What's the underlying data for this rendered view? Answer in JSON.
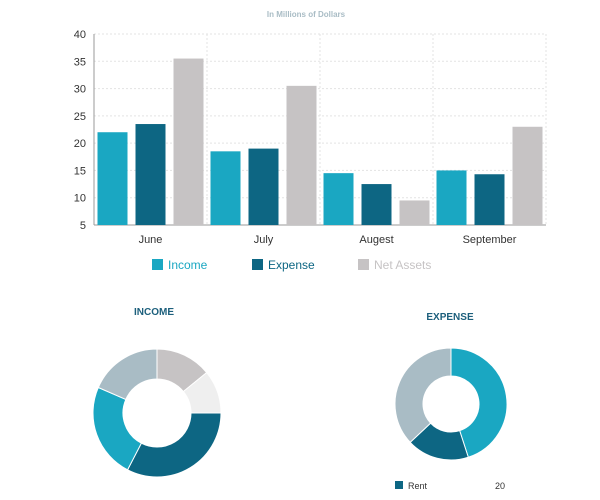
{
  "chart_data": [
    {
      "type": "bar",
      "title": "In Millions of Dollars",
      "categories": [
        "June",
        "July",
        "Augest",
        "September"
      ],
      "series": [
        {
          "name": "Income",
          "values": [
            22,
            18.5,
            14.5,
            15
          ]
        },
        {
          "name": "Expense",
          "values": [
            23.5,
            19,
            12.5,
            14.3
          ]
        },
        {
          "name": "Net Assets",
          "values": [
            35.5,
            30.5,
            9.5,
            23
          ]
        }
      ],
      "ylim": [
        5,
        40
      ],
      "yticks": [
        5,
        10,
        15,
        20,
        25,
        30,
        35,
        40
      ],
      "grid": true,
      "legend": "bottom"
    },
    {
      "type": "pie",
      "style": "donut",
      "title": "INCOME",
      "values": [
        13,
        10,
        30,
        22,
        17
      ]
    },
    {
      "type": "pie",
      "style": "donut",
      "title": "EXPENSE",
      "values": [
        45,
        18,
        37
      ],
      "legend": [
        {
          "label": "Rent",
          "value": "20"
        }
      ]
    }
  ],
  "colors": {
    "income": "#1aa7c2",
    "expense": "#0d6683",
    "net_assets": "#c6c3c4",
    "income_pie": [
      "#c6c3c4",
      "#efefef",
      "#0d6683",
      "#1aa7c2",
      "#a9bcc5"
    ],
    "expense_pie": [
      "#1aa7c2",
      "#0d6683",
      "#a9bcc5"
    ],
    "axis_text": "#333333",
    "grid": "#e3e3e3",
    "title": "#a9bcc5",
    "pie_title": "#1c5f7c"
  }
}
